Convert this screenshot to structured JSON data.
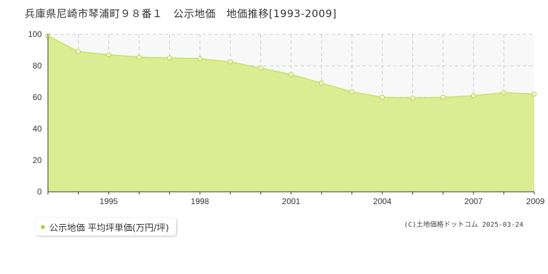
{
  "title": "兵庫県尼崎市琴浦町９８番１　公示地価　地価推移[1993-2009]",
  "credit": "(C)土地価格ドットコム 2025-03-24",
  "legend": {
    "label": "公示地価 平均坪単価(万円/坪)",
    "color": "#a8d52c"
  },
  "colors": {
    "fill": "#dbec92",
    "line": "#c8e06a",
    "marker": "#b9d84a",
    "grid": "#cccccc",
    "plot_bg": "#f8f8f8"
  },
  "chart_data": {
    "type": "area",
    "x": [
      1993,
      1994,
      1995,
      1996,
      1997,
      1998,
      1999,
      2000,
      2001,
      2002,
      2003,
      2004,
      2005,
      2006,
      2007,
      2008,
      2009
    ],
    "series": [
      {
        "name": "公示地価 平均坪単価(万円/坪)",
        "values": [
          99,
          89,
          87,
          85.5,
          85,
          84.5,
          82.5,
          78.5,
          74.5,
          69,
          63.5,
          60,
          59.5,
          60,
          61,
          63,
          62
        ]
      }
    ],
    "xlim": [
      1993,
      2009
    ],
    "ylim": [
      0,
      100
    ],
    "yticks": [
      0,
      20,
      40,
      60,
      80,
      100
    ],
    "xticks": [
      1995,
      1998,
      2001,
      2004,
      2007,
      2009
    ],
    "grid": true,
    "legend_position": "bottom-left"
  }
}
